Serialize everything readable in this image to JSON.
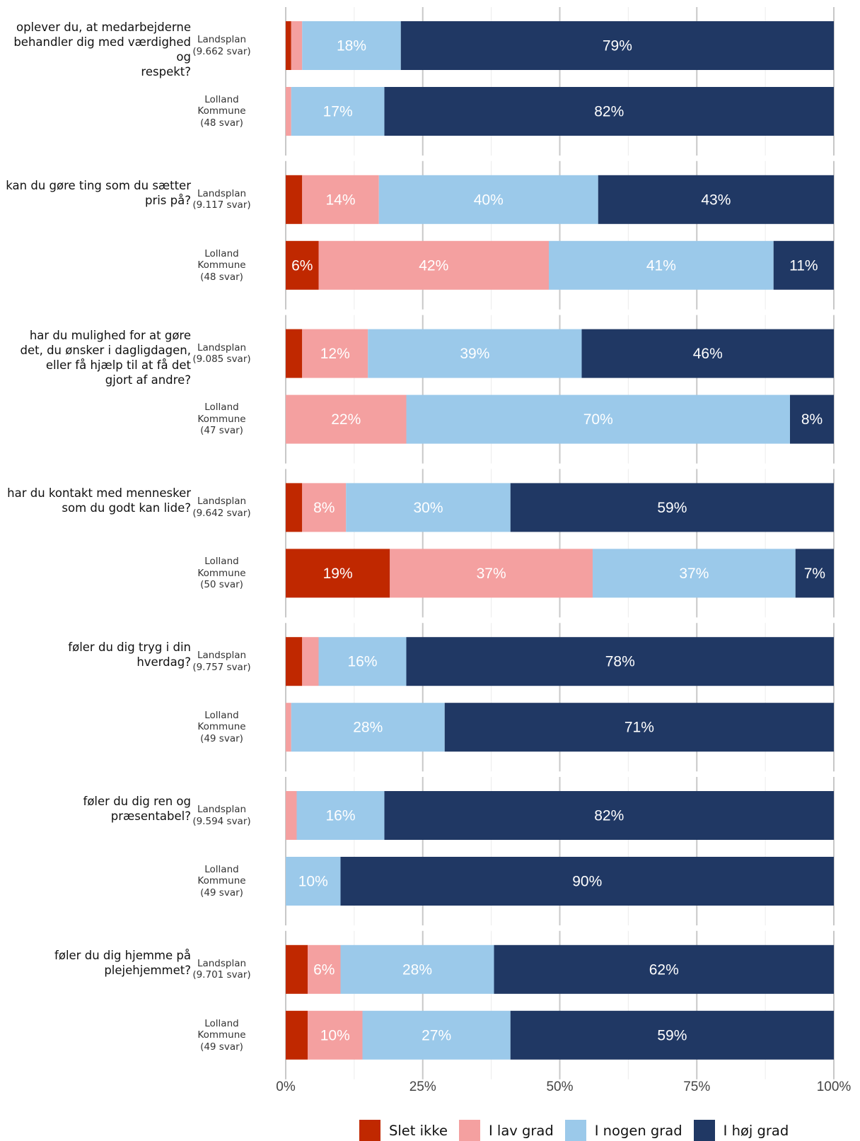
{
  "colors": {
    "slet_ikke": "#c02800",
    "i_lav_grad": "#f4a0a0",
    "i_nogen_grad": "#9bc9ea",
    "i_hoj_grad": "#203864",
    "grid": "#c8c8c8"
  },
  "chart_data": {
    "type": "bar",
    "orientation": "horizontal",
    "stacked": true,
    "xlim": [
      0,
      100
    ],
    "x_ticks": [
      {
        "value": 0,
        "label": "0%"
      },
      {
        "value": 25,
        "label": "25%"
      },
      {
        "value": 50,
        "label": "50%"
      },
      {
        "value": 75,
        "label": "75%"
      },
      {
        "value": 100,
        "label": "100%"
      }
    ],
    "legend_position": "bottom",
    "legend": [
      {
        "name": "Slet ikke",
        "color_key": "slet_ikke"
      },
      {
        "name": "I lav grad",
        "color_key": "i_lav_grad"
      },
      {
        "name": "I nogen grad",
        "color_key": "i_nogen_grad"
      },
      {
        "name": "I høj grad",
        "color_key": "i_hoj_grad"
      }
    ],
    "questions": [
      {
        "question": "oplever du, at medarbejderne\nbehandler dig med værdighed og\nrespekt?",
        "groups": [
          {
            "label": "Landsplan\n(9.662 svar)",
            "values": [
              1,
              2,
              18,
              79
            ],
            "labels": [
              "",
              "",
              "18%",
              "79%"
            ]
          },
          {
            "label": "Lolland\nKommune\n(48 svar)",
            "values": [
              0,
              1,
              17,
              82
            ],
            "labels": [
              "",
              "",
              "17%",
              "82%"
            ]
          }
        ]
      },
      {
        "question": "kan du gøre ting som du sætter\npris på?",
        "groups": [
          {
            "label": "Landsplan\n(9.117 svar)",
            "values": [
              3,
              14,
              40,
              43
            ],
            "labels": [
              "",
              "14%",
              "40%",
              "43%"
            ]
          },
          {
            "label": "Lolland\nKommune\n(48 svar)",
            "values": [
              6,
              42,
              41,
              11
            ],
            "labels": [
              "6%",
              "42%",
              "41%",
              "11%"
            ]
          }
        ]
      },
      {
        "question": "har du mulighed for at gøre\ndet, du ønsker i dagligdagen,\neller få hjælp til at få det\ngjort af andre?",
        "groups": [
          {
            "label": "Landsplan\n(9.085 svar)",
            "values": [
              3,
              12,
              39,
              46
            ],
            "labels": [
              "",
              "12%",
              "39%",
              "46%"
            ]
          },
          {
            "label": "Lolland\nKommune\n(47 svar)",
            "values": [
              0,
              22,
              70,
              8
            ],
            "labels": [
              "",
              "22%",
              "70%",
              "8%"
            ]
          }
        ]
      },
      {
        "question": "har du kontakt med mennesker\nsom du godt kan lide?",
        "groups": [
          {
            "label": "Landsplan\n(9.642 svar)",
            "values": [
              3,
              8,
              30,
              59
            ],
            "labels": [
              "",
              "8%",
              "30%",
              "59%"
            ]
          },
          {
            "label": "Lolland\nKommune\n(50 svar)",
            "values": [
              19,
              37,
              37,
              7
            ],
            "labels": [
              "19%",
              "37%",
              "37%",
              "7%"
            ]
          }
        ]
      },
      {
        "question": "føler du dig tryg i din\nhverdag?",
        "groups": [
          {
            "label": "Landsplan\n(9.757 svar)",
            "values": [
              3,
              3,
              16,
              78
            ],
            "labels": [
              "",
              "",
              "16%",
              "78%"
            ]
          },
          {
            "label": "Lolland\nKommune\n(49 svar)",
            "values": [
              0,
              1,
              28,
              71
            ],
            "labels": [
              "",
              "",
              "28%",
              "71%"
            ]
          }
        ]
      },
      {
        "question": "føler du dig ren og\npræsentabel?",
        "groups": [
          {
            "label": "Landsplan\n(9.594 svar)",
            "values": [
              0,
              2,
              16,
              82
            ],
            "labels": [
              "",
              "",
              "16%",
              "82%"
            ]
          },
          {
            "label": "Lolland\nKommune\n(49 svar)",
            "values": [
              0,
              0,
              10,
              90
            ],
            "labels": [
              "",
              "",
              "10%",
              "90%"
            ]
          }
        ]
      },
      {
        "question": "føler du dig hjemme på\nplejehjemmet?",
        "groups": [
          {
            "label": "Landsplan\n(9.701 svar)",
            "values": [
              4,
              6,
              28,
              62
            ],
            "labels": [
              "",
              "6%",
              "28%",
              "62%"
            ]
          },
          {
            "label": "Lolland\nKommune\n(49 svar)",
            "values": [
              4,
              10,
              27,
              59
            ],
            "labels": [
              "",
              "10%",
              "27%",
              "59%"
            ]
          }
        ]
      }
    ]
  }
}
